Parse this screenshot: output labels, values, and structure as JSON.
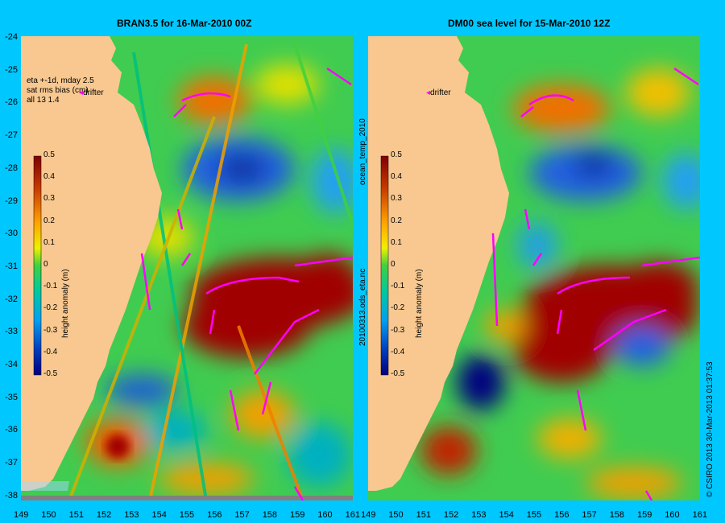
{
  "left_panel": {
    "title": "BRAN3.5 for 16-Mar-2010 00Z",
    "info_lines": [
      "eta +-1d, mday 2.5",
      "sat rms bias (cm)",
      "all 13 1.4"
    ],
    "drifter_label": "drifter",
    "colorbar_label": "height anomaly (m)"
  },
  "right_panel": {
    "title": "DM00 sea level  for 15-Mar-2010 12Z",
    "drifter_label": "drifter",
    "colorbar_label": "height anomaly (m)"
  },
  "colorbar_ticks": [
    "0.5",
    "0.4",
    "0.3",
    "0.2",
    "0.1",
    "0",
    "-0.1",
    "-0.2",
    "-0.3",
    "-0.4",
    "-0.5"
  ],
  "y_ticks": [
    "-24",
    "-25",
    "-26",
    "-27",
    "-28",
    "-29",
    "-30",
    "-31",
    "-32",
    "-33",
    "-34",
    "-35",
    "-36",
    "-37",
    "-38"
  ],
  "x_ticks": [
    "149",
    "150",
    "151",
    "152",
    "153",
    "154",
    "155",
    "156",
    "157",
    "158",
    "159",
    "160",
    "161"
  ],
  "center_vertical_labels": [
    "ocean_temp_2010",
    "20100313.ods_eta.nc"
  ],
  "right_vertical_label": "© CSIRO 2013   30-Mar-2013 01:37:53",
  "colors": {
    "background": "#00c8ff",
    "land": "#f8c890",
    "drifter": "#ff00ff"
  }
}
